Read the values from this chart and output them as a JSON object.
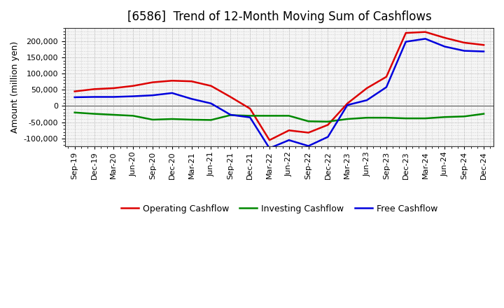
{
  "title": "[6586]  Trend of 12-Month Moving Sum of Cashflows",
  "ylabel": "Amount (million yen)",
  "background_color": "#ffffff",
  "plot_bg_color": "#f5f5f5",
  "grid_color": "#999999",
  "x_labels": [
    "Sep-19",
    "Dec-19",
    "Mar-20",
    "Jun-20",
    "Sep-20",
    "Dec-20",
    "Mar-21",
    "Jun-21",
    "Sep-21",
    "Dec-21",
    "Mar-22",
    "Jun-22",
    "Sep-22",
    "Dec-22",
    "Mar-23",
    "Jun-23",
    "Sep-23",
    "Dec-23",
    "Mar-24",
    "Jun-24",
    "Sep-24",
    "Dec-24"
  ],
  "operating": [
    45000,
    52000,
    55000,
    62000,
    73000,
    78000,
    76000,
    62000,
    28000,
    -8000,
    -105000,
    -75000,
    -82000,
    -58000,
    8000,
    55000,
    90000,
    225000,
    228000,
    210000,
    195000,
    188000
  ],
  "investing": [
    -20000,
    -24000,
    -27000,
    -30000,
    -42000,
    -40000,
    -42000,
    -43000,
    -28000,
    -30000,
    -30000,
    -30000,
    -47000,
    -48000,
    -40000,
    -36000,
    -36000,
    -38000,
    -38000,
    -34000,
    -32000,
    -24000
  ],
  "free": [
    27000,
    28000,
    28000,
    30000,
    33000,
    40000,
    22000,
    8000,
    -27000,
    -35000,
    -130000,
    -105000,
    -123000,
    -95000,
    3000,
    18000,
    58000,
    198000,
    207000,
    183000,
    170000,
    168000
  ],
  "operating_color": "#dd0000",
  "investing_color": "#008800",
  "free_color": "#0000dd",
  "ylim_min": -125000,
  "ylim_max": 240000,
  "yticks": [
    -100000,
    -50000,
    0,
    50000,
    100000,
    150000,
    200000
  ],
  "line_width": 1.8,
  "title_fontsize": 12,
  "axis_fontsize": 9,
  "tick_fontsize": 8,
  "legend_fontsize": 9
}
